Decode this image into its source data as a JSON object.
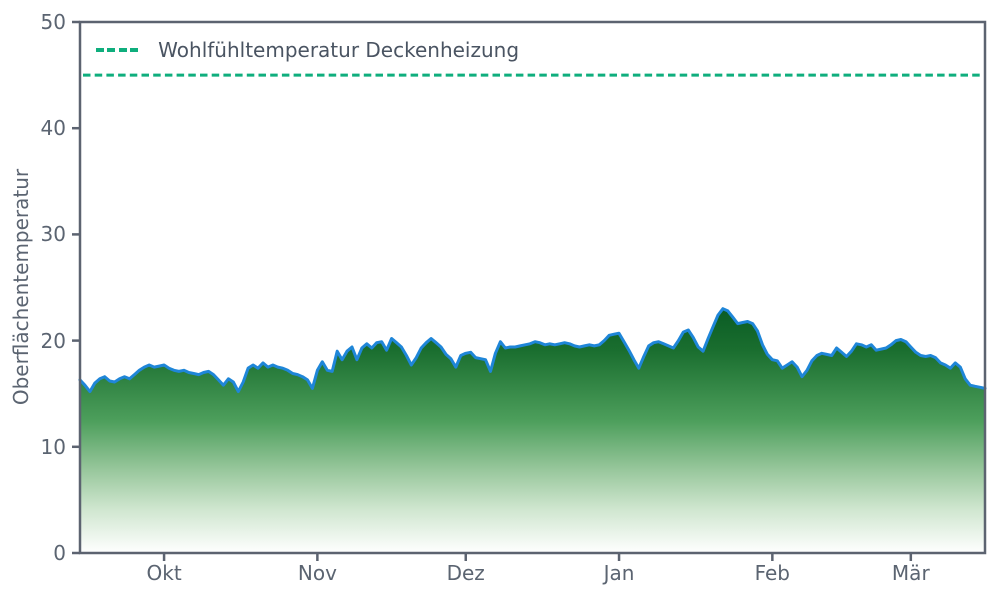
{
  "colors": {
    "accent_teal": "#0fae7d",
    "line_blue": "#1f86d8",
    "text_gray": "#5b6471",
    "legend_text": "#4a5462",
    "spine_gray": "#5c6370",
    "background": "#ffffff"
  },
  "chart_data": {
    "type": "area",
    "title": "",
    "xlabel": "",
    "ylabel": "Oberflächentemperatur",
    "ylim": [
      0,
      50
    ],
    "grid": false,
    "legend_position": "upper left",
    "x_unit": "daily values, mid-September to mid-March",
    "xtick_days": [
      17,
      48,
      78,
      109,
      140,
      168
    ],
    "xtick_labels": [
      "Okt",
      "Nov",
      "Dez",
      "Jan",
      "Feb",
      "Mär"
    ],
    "ytick_values": [
      0,
      10,
      20,
      30,
      40,
      50
    ],
    "ytick_labels": [
      "0",
      "10",
      "20",
      "30",
      "40",
      "50"
    ],
    "reference_line": {
      "value": 45,
      "style": "dashed",
      "label": "Wohlfühltemperatur Deckenheizung"
    },
    "series": [
      {
        "name": "Oberflächentemperatur",
        "values": [
          16.3,
          15.8,
          15.2,
          16.0,
          16.4,
          16.6,
          16.2,
          16.1,
          16.4,
          16.6,
          16.4,
          16.8,
          17.2,
          17.5,
          17.7,
          17.5,
          17.6,
          17.7,
          17.4,
          17.2,
          17.1,
          17.2,
          17.0,
          16.9,
          16.8,
          17.0,
          17.1,
          16.8,
          16.3,
          15.8,
          16.4,
          16.1,
          15.2,
          16.1,
          17.4,
          17.7,
          17.4,
          17.9,
          17.5,
          17.7,
          17.5,
          17.4,
          17.2,
          16.9,
          16.8,
          16.6,
          16.3,
          15.5,
          17.2,
          18.0,
          17.2,
          17.1,
          19.0,
          18.2,
          19.0,
          19.4,
          18.2,
          19.3,
          19.7,
          19.3,
          19.8,
          19.9,
          19.1,
          20.2,
          19.8,
          19.4,
          18.6,
          17.7,
          18.4,
          19.3,
          19.8,
          20.2,
          19.8,
          19.4,
          18.7,
          18.3,
          17.5,
          18.6,
          18.8,
          18.9,
          18.4,
          18.3,
          18.2,
          17.1,
          18.8,
          19.9,
          19.3,
          19.4,
          19.4,
          19.5,
          19.6,
          19.7,
          19.9,
          19.8,
          19.6,
          19.7,
          19.6,
          19.7,
          19.8,
          19.7,
          19.5,
          19.4,
          19.5,
          19.6,
          19.5,
          19.6,
          20.0,
          20.5,
          20.6,
          20.7,
          19.9,
          19.1,
          18.2,
          17.4,
          18.5,
          19.5,
          19.8,
          19.9,
          19.7,
          19.5,
          19.3,
          20.0,
          20.8,
          21.0,
          20.3,
          19.4,
          19.0,
          20.2,
          21.3,
          22.4,
          23.0,
          22.8,
          22.2,
          21.6,
          21.7,
          21.8,
          21.6,
          20.9,
          19.6,
          18.7,
          18.2,
          18.1,
          17.4,
          17.7,
          18.0,
          17.5,
          16.6,
          17.2,
          18.1,
          18.6,
          18.8,
          18.7,
          18.6,
          19.3,
          18.9,
          18.5,
          19.0,
          19.7,
          19.6,
          19.4,
          19.6,
          19.1,
          19.2,
          19.3,
          19.6,
          20.0,
          20.1,
          19.9,
          19.4,
          18.9,
          18.6,
          18.5,
          18.6,
          18.4,
          17.9,
          17.7,
          17.4,
          17.9,
          17.5,
          16.4,
          15.8,
          15.7,
          15.6,
          15.5
        ]
      }
    ],
    "fill_gradient": [
      {
        "offset": 0.0,
        "color": "#0a5c24"
      },
      {
        "offset": 0.17,
        "color": "#1a6e2f"
      },
      {
        "offset": 0.46,
        "color": "#4d9f5c"
      },
      {
        "offset": 0.66,
        "color": "#98c79c"
      },
      {
        "offset": 0.82,
        "color": "#cfe6cf"
      },
      {
        "offset": 1.0,
        "color": "#ffffff"
      }
    ]
  }
}
